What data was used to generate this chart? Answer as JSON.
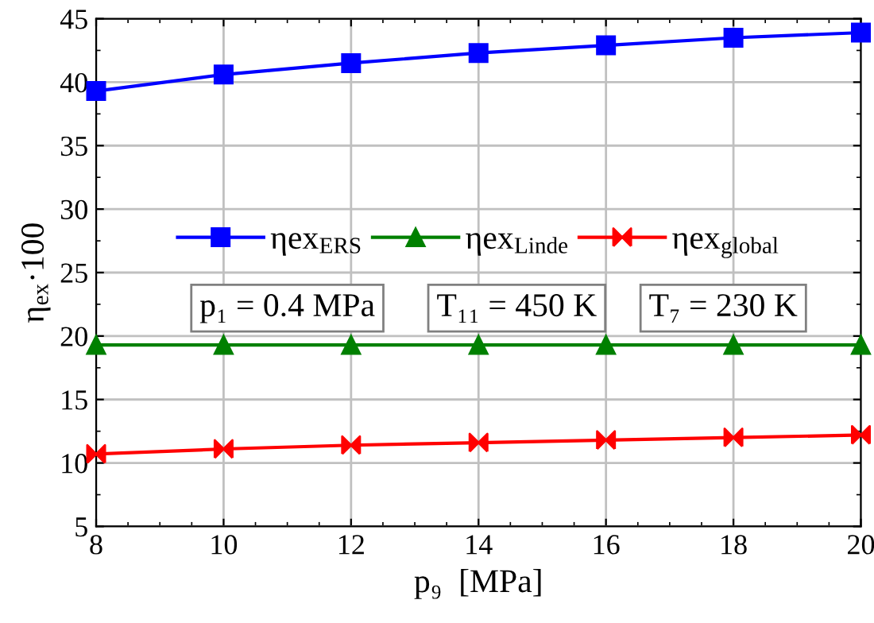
{
  "chart_data": {
    "type": "line",
    "xlabel": "p₉  [MPa]",
    "ylabel": "η$_{ex}$·100",
    "x": [
      8,
      10,
      12,
      14,
      16,
      18,
      20
    ],
    "series": [
      {
        "name": "ηex$_{ERS}$",
        "color": "#0000ff",
        "marker": "square",
        "values": [
          39.3,
          40.6,
          41.5,
          42.3,
          42.9,
          43.5,
          43.9
        ]
      },
      {
        "name": "ηex$_{Linde}$",
        "color": "#008000",
        "marker": "triangle",
        "values": [
          19.3,
          19.3,
          19.3,
          19.3,
          19.3,
          19.3,
          19.3
        ]
      },
      {
        "name": "ηex$_{global}$",
        "color": "#ff0000",
        "marker": "cross",
        "values": [
          10.7,
          11.1,
          11.4,
          11.6,
          11.8,
          12.0,
          12.2
        ]
      }
    ],
    "xlim": [
      8,
      20
    ],
    "xticks": [
      8,
      10,
      12,
      14,
      16,
      18,
      20
    ],
    "ylim": [
      5,
      45
    ],
    "yticks": [
      5,
      10,
      15,
      20,
      25,
      30,
      35,
      40,
      45
    ],
    "grid": true,
    "legend": "center",
    "line_style": "solid",
    "annotations": [
      "p₁ = 0.4 MPa",
      "T₁₁ = 450 K",
      "T₇ = 230 K"
    ]
  }
}
